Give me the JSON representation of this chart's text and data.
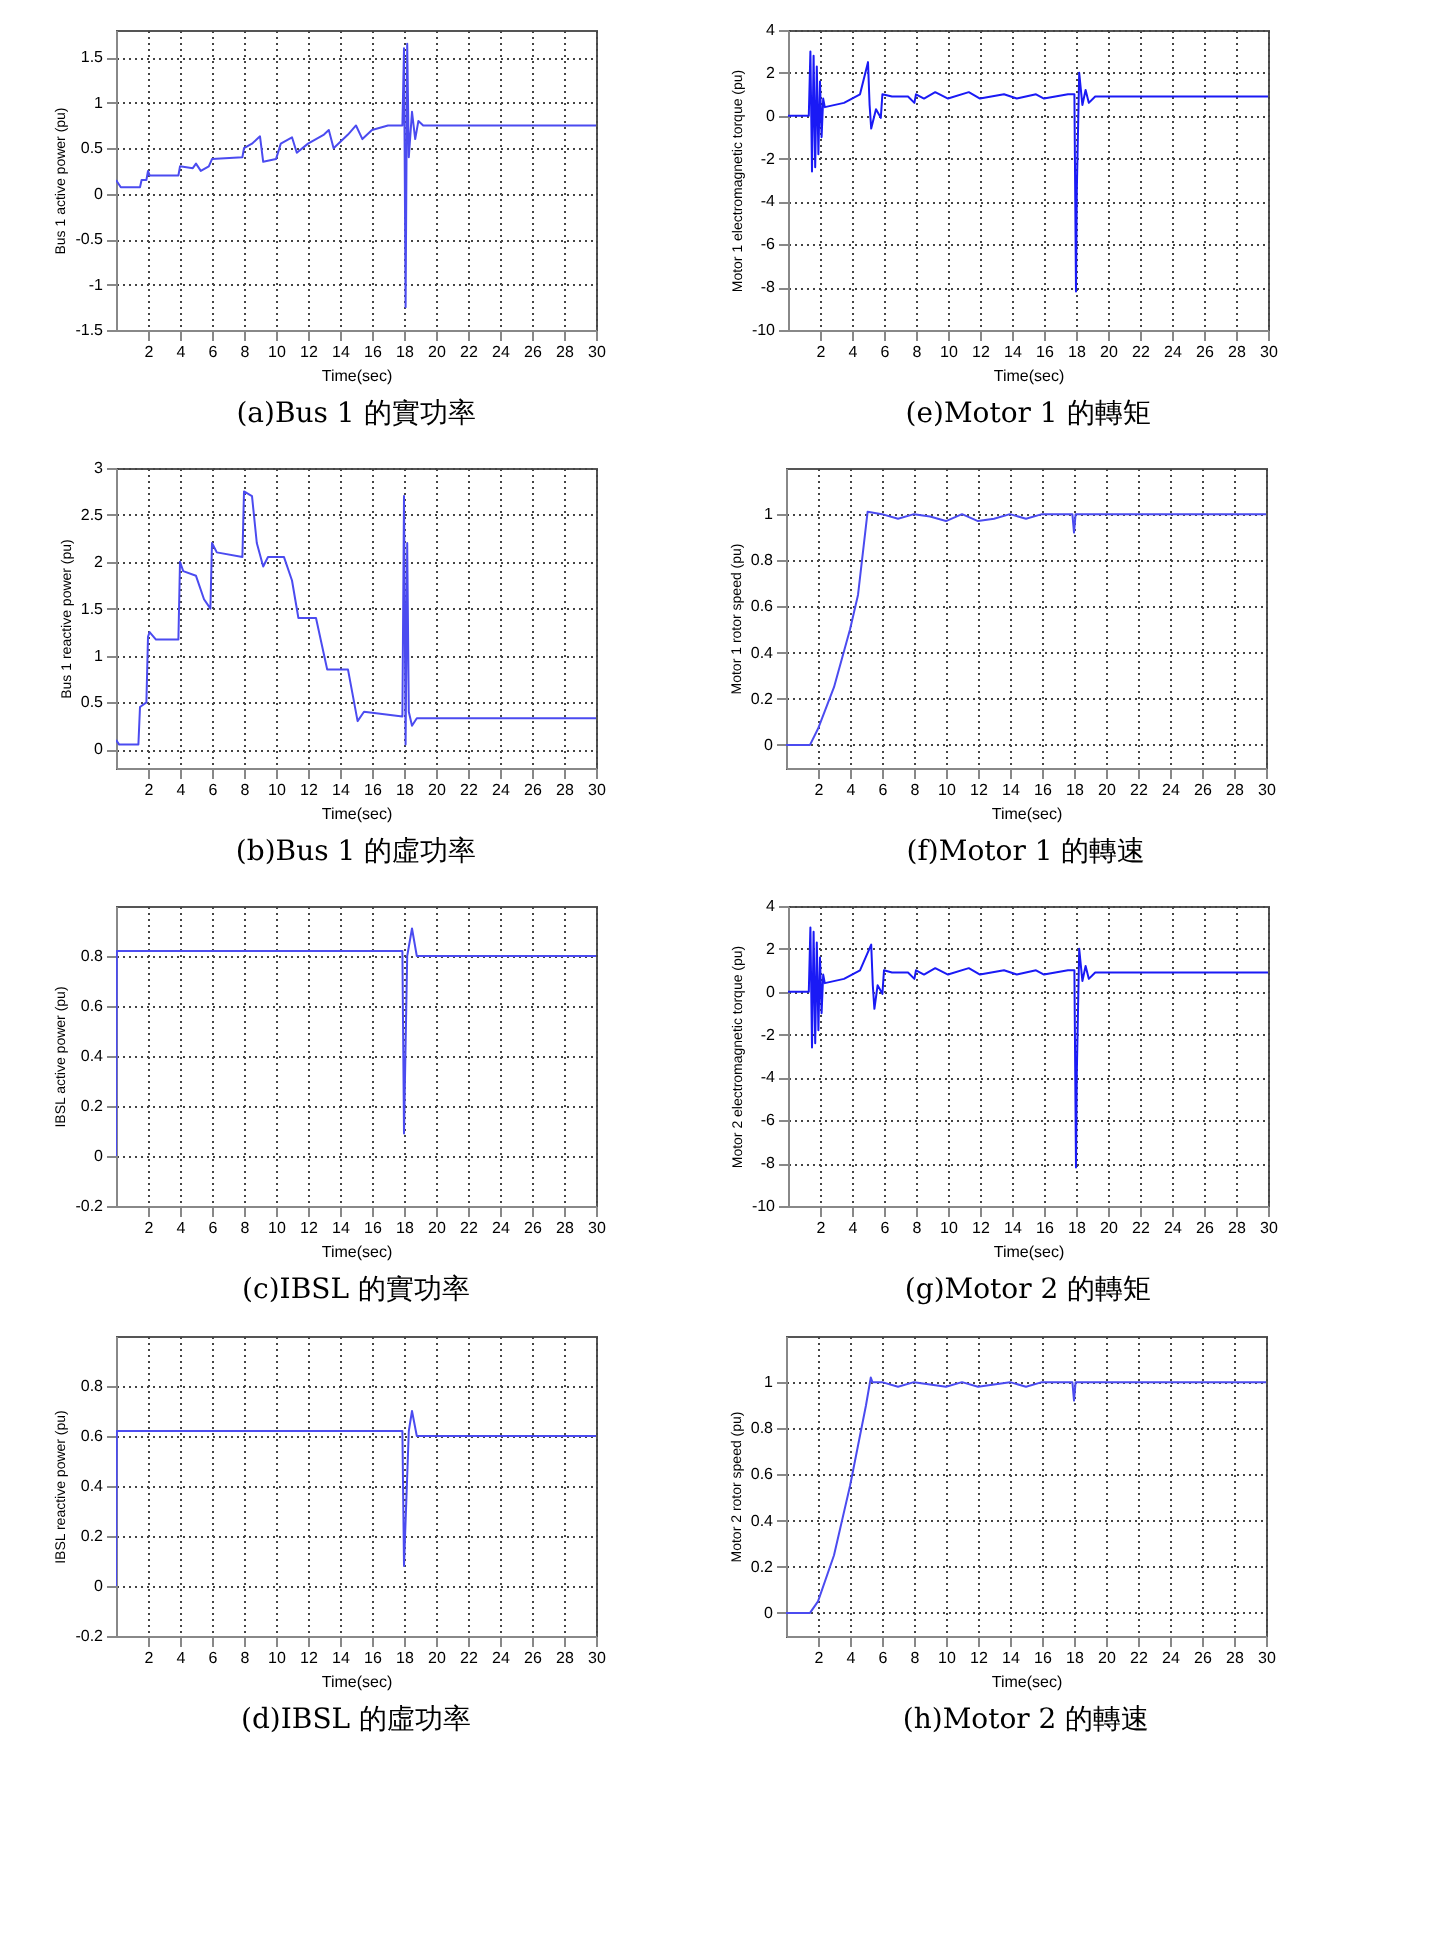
{
  "chart_data": [
    {
      "type": "line",
      "title": "(a)Bus 1 的實功率",
      "xlabel": "Time(sec)",
      "ylabel": "Bus 1 active power (pu)",
      "xlim": [
        0,
        30
      ],
      "xticks": [
        2,
        4,
        6,
        8,
        10,
        12,
        14,
        16,
        18,
        20,
        22,
        24,
        26,
        28,
        30
      ],
      "ylim": [
        -1.5,
        1.8
      ],
      "yticks": [
        -1.5,
        -1,
        -0.5,
        0,
        0.5,
        1,
        1.5
      ],
      "grid": true,
      "marker": "none",
      "line_style": "solid",
      "series": [
        {
          "color": "#4b4bf0",
          "x": [
            0,
            0.3,
            1.5,
            1.6,
            1.9,
            2.0,
            2.1,
            3.9,
            4.0,
            4.8,
            5.0,
            5.3,
            5.8,
            6.0,
            7.9,
            8.0,
            8.5,
            9.0,
            9.2,
            10.0,
            10.3,
            11.0,
            11.3,
            12.0,
            13.0,
            13.3,
            13.6,
            14.5,
            15.0,
            15.4,
            16.0,
            17.0,
            17.9,
            18.0,
            18.1,
            18.2,
            18.3,
            18.5,
            18.7,
            18.9,
            19.2,
            30
          ],
          "values": [
            0.15,
            0.07,
            0.07,
            0.15,
            0.15,
            0.25,
            0.2,
            0.2,
            0.3,
            0.28,
            0.33,
            0.25,
            0.3,
            0.38,
            0.4,
            0.5,
            0.55,
            0.63,
            0.35,
            0.38,
            0.55,
            0.62,
            0.45,
            0.55,
            0.65,
            0.7,
            0.5,
            0.65,
            0.75,
            0.6,
            0.7,
            0.75,
            0.75,
            1.6,
            -1.25,
            1.65,
            0.4,
            0.9,
            0.6,
            0.8,
            0.75,
            0.75
          ]
        }
      ]
    },
    {
      "type": "line",
      "title": "(e)Motor 1 的轉矩",
      "xlabel": "Time(sec)",
      "ylabel": "Motor 1 electromagnetic torque (pu)",
      "xlim": [
        0,
        30
      ],
      "xticks": [
        2,
        4,
        6,
        8,
        10,
        12,
        14,
        16,
        18,
        20,
        22,
        24,
        26,
        28,
        30
      ],
      "ylim": [
        -10,
        4
      ],
      "yticks": [
        -10,
        -8,
        -6,
        -4,
        -2,
        0,
        2,
        4
      ],
      "grid": true,
      "marker": "none",
      "line_style": "solid",
      "series": [
        {
          "color": "#1a1af5",
          "x": [
            0,
            1.3,
            1.4,
            1.5,
            1.6,
            1.7,
            1.8,
            1.9,
            2.0,
            2.1,
            2.2,
            2.3,
            3.5,
            4.5,
            5.0,
            5.1,
            5.2,
            5.5,
            5.8,
            5.9,
            6.5,
            7.5,
            7.9,
            8.0,
            8.5,
            9.2,
            10.0,
            11.3,
            12.0,
            13.5,
            14.3,
            15.5,
            16.0,
            17.5,
            17.9,
            18.0,
            18.05,
            18.2,
            18.4,
            18.6,
            18.8,
            19.2,
            30
          ],
          "values": [
            0,
            0,
            3.0,
            -2.6,
            2.8,
            -2.4,
            2.3,
            -1.8,
            1.6,
            -1.0,
            0.8,
            0.4,
            0.6,
            1.0,
            2.5,
            0.5,
            -0.6,
            0.3,
            -0.1,
            1.0,
            0.9,
            0.9,
            0.6,
            1.0,
            0.8,
            1.1,
            0.8,
            1.1,
            0.8,
            1.0,
            0.8,
            1.0,
            0.8,
            1.0,
            1.0,
            -8.2,
            -3.5,
            2.0,
            0.5,
            1.2,
            0.6,
            0.9,
            0.9
          ]
        }
      ]
    },
    {
      "type": "line",
      "title": "(b)Bus 1 的虛功率",
      "xlabel": "Time(sec)",
      "ylabel": "Bus 1 reactive power (pu)",
      "xlim": [
        0,
        30
      ],
      "xticks": [
        2,
        4,
        6,
        8,
        10,
        12,
        14,
        16,
        18,
        20,
        22,
        24,
        26,
        28,
        30
      ],
      "ylim": [
        -0.2,
        3
      ],
      "yticks": [
        0,
        0.5,
        1,
        1.5,
        2,
        2.5,
        3
      ],
      "grid": true,
      "marker": "none",
      "line_style": "solid",
      "series": [
        {
          "color": "#4b4bf0",
          "x": [
            0,
            0.2,
            1.4,
            1.5,
            1.9,
            2.0,
            2.1,
            2.5,
            3.9,
            4.0,
            4.2,
            5.0,
            5.5,
            5.9,
            6.0,
            6.3,
            7.9,
            8.0,
            8.5,
            8.8,
            9.2,
            9.5,
            10.5,
            11.0,
            11.4,
            12.5,
            13.2,
            14.5,
            15.1,
            15.5,
            17.9,
            18.0,
            18.1,
            18.2,
            18.3,
            18.5,
            18.8,
            30
          ],
          "values": [
            0.1,
            0.05,
            0.05,
            0.45,
            0.5,
            1.2,
            1.25,
            1.17,
            1.17,
            2.0,
            1.9,
            1.85,
            1.6,
            1.5,
            2.2,
            2.1,
            2.05,
            2.75,
            2.7,
            2.2,
            1.95,
            2.05,
            2.05,
            1.8,
            1.4,
            1.4,
            0.85,
            0.85,
            0.3,
            0.4,
            0.35,
            2.7,
            0.05,
            2.2,
            0.4,
            0.25,
            0.33,
            0.33
          ]
        }
      ]
    },
    {
      "type": "line",
      "title": "(f)Motor 1 的轉速",
      "xlabel": "Time(sec)",
      "ylabel": "Motor 1 rotor speed (pu)",
      "xlim": [
        0,
        30
      ],
      "xticks": [
        2,
        4,
        6,
        8,
        10,
        12,
        14,
        16,
        18,
        20,
        22,
        24,
        26,
        28,
        30
      ],
      "ylim": [
        -0.1,
        1.2
      ],
      "yticks": [
        0,
        0.2,
        0.4,
        0.6,
        0.8,
        1
      ],
      "grid": true,
      "marker": "none",
      "line_style": "solid",
      "series": [
        {
          "color": "#4b4bf0",
          "x": [
            0,
            1.5,
            2,
            3,
            4,
            4.5,
            5.0,
            5.1,
            6,
            7,
            8,
            9,
            10,
            11,
            12,
            13,
            14,
            15,
            16,
            17.9,
            18.0,
            18.1,
            30
          ],
          "values": [
            0,
            0,
            0.07,
            0.25,
            0.5,
            0.65,
            0.95,
            1.01,
            1.0,
            0.98,
            1.0,
            0.99,
            0.97,
            1.0,
            0.97,
            0.98,
            1.0,
            0.98,
            1.0,
            1.0,
            0.92,
            1.0,
            1.0
          ]
        }
      ]
    },
    {
      "type": "line",
      "title": "(c)IBSL 的實功率",
      "xlabel": "Time(sec)",
      "ylabel": "IBSL active power (pu)",
      "xlim": [
        0,
        30
      ],
      "xticks": [
        2,
        4,
        6,
        8,
        10,
        12,
        14,
        16,
        18,
        20,
        22,
        24,
        26,
        28,
        30
      ],
      "ylim": [
        -0.2,
        1.0
      ],
      "yticks": [
        -0.2,
        0,
        0.2,
        0.4,
        0.6,
        0.8
      ],
      "grid": true,
      "marker": "none",
      "line_style": "solid",
      "series": [
        {
          "color": "#4b4bf0",
          "x": [
            0,
            0.05,
            17.9,
            18.0,
            18.2,
            18.5,
            18.8,
            19.2,
            30
          ],
          "values": [
            0,
            0.82,
            0.82,
            0.09,
            0.8,
            0.91,
            0.8,
            0.8,
            0.8
          ]
        }
      ]
    },
    {
      "type": "line",
      "title": "(g)Motor 2 的轉矩",
      "xlabel": "Time(sec)",
      "ylabel": "Motor 2 electromagnetic torque (pu)",
      "xlim": [
        0,
        30
      ],
      "xticks": [
        2,
        4,
        6,
        8,
        10,
        12,
        14,
        16,
        18,
        20,
        22,
        24,
        26,
        28,
        30
      ],
      "ylim": [
        -10,
        4
      ],
      "yticks": [
        -10,
        -8,
        -6,
        -4,
        -2,
        0,
        2,
        4
      ],
      "grid": true,
      "marker": "none",
      "line_style": "solid",
      "series": [
        {
          "color": "#1a1af5",
          "x": [
            0,
            1.3,
            1.4,
            1.5,
            1.6,
            1.7,
            1.8,
            1.9,
            2.0,
            2.1,
            2.2,
            2.3,
            3.5,
            4.5,
            5.2,
            5.3,
            5.4,
            5.6,
            5.9,
            6.0,
            6.5,
            7.5,
            7.9,
            8.0,
            8.5,
            9.2,
            10.0,
            11.3,
            12.0,
            13.5,
            14.3,
            15.5,
            16.0,
            17.5,
            17.9,
            18.0,
            18.05,
            18.2,
            18.4,
            18.6,
            18.8,
            19.2,
            30
          ],
          "values": [
            0,
            0,
            3.0,
            -2.6,
            2.8,
            -2.4,
            2.3,
            -1.8,
            1.6,
            -1.0,
            0.8,
            0.4,
            0.6,
            1.0,
            2.2,
            0.3,
            -0.8,
            0.3,
            -0.1,
            1.0,
            0.9,
            0.9,
            0.6,
            1.0,
            0.8,
            1.1,
            0.8,
            1.1,
            0.8,
            1.0,
            0.8,
            1.0,
            0.8,
            1.0,
            1.0,
            -8.2,
            -3.8,
            2.0,
            0.5,
            1.2,
            0.6,
            0.9,
            0.9
          ]
        }
      ]
    },
    {
      "type": "line",
      "title": "(d)IBSL 的虛功率",
      "xlabel": "Time(sec)",
      "ylabel": "IBSL reactive power (pu)",
      "xlim": [
        0,
        30
      ],
      "xticks": [
        2,
        4,
        6,
        8,
        10,
        12,
        14,
        16,
        18,
        20,
        22,
        24,
        26,
        28,
        30
      ],
      "ylim": [
        -0.2,
        1.0
      ],
      "yticks": [
        -0.2,
        0,
        0.2,
        0.4,
        0.6,
        0.8
      ],
      "grid": true,
      "marker": "none",
      "line_style": "solid",
      "series": [
        {
          "color": "#4b4bf0",
          "x": [
            0,
            0.05,
            17.9,
            18.0,
            18.3,
            18.5,
            18.8,
            19.2,
            30
          ],
          "values": [
            0,
            0.62,
            0.62,
            0.08,
            0.62,
            0.7,
            0.6,
            0.6,
            0.6
          ]
        }
      ]
    },
    {
      "type": "line",
      "title": "(h)Motor 2 的轉速",
      "xlabel": "Time(sec)",
      "ylabel": "Motor 2 rotor speed (pu)",
      "xlim": [
        0,
        30
      ],
      "xticks": [
        2,
        4,
        6,
        8,
        10,
        12,
        14,
        16,
        18,
        20,
        22,
        24,
        26,
        28,
        30
      ],
      "ylim": [
        -0.1,
        1.2
      ],
      "yticks": [
        0,
        0.2,
        0.4,
        0.6,
        0.8,
        1
      ],
      "grid": true,
      "marker": "none",
      "line_style": "solid",
      "series": [
        {
          "color": "#4b4bf0",
          "x": [
            0,
            1.5,
            2,
            3,
            4,
            5.0,
            5.3,
            5.4,
            6,
            7,
            8,
            9,
            10,
            11,
            12,
            13,
            14,
            15,
            16,
            17.9,
            18.0,
            18.1,
            30
          ],
          "values": [
            0,
            0,
            0.05,
            0.25,
            0.55,
            0.9,
            1.02,
            1.0,
            1.0,
            0.98,
            1.0,
            0.99,
            0.98,
            1.0,
            0.98,
            0.99,
            1.0,
            0.98,
            1.0,
            1.0,
            0.92,
            1.0,
            1.0
          ]
        }
      ]
    }
  ]
}
